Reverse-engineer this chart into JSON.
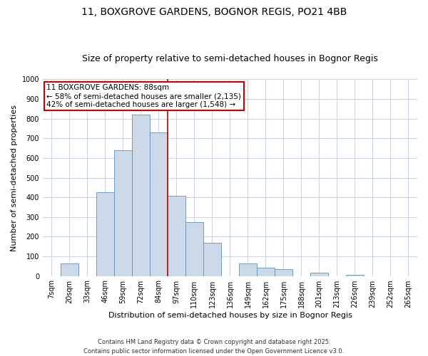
{
  "title": "11, BOXGROVE GARDENS, BOGNOR REGIS, PO21 4BB",
  "subtitle": "Size of property relative to semi-detached houses in Bognor Regis",
  "xlabel": "Distribution of semi-detached houses by size in Bognor Regis",
  "ylabel": "Number of semi-detached properties",
  "bin_labels": [
    "7sqm",
    "20sqm",
    "33sqm",
    "46sqm",
    "59sqm",
    "72sqm",
    "84sqm",
    "97sqm",
    "110sqm",
    "123sqm",
    "136sqm",
    "149sqm",
    "162sqm",
    "175sqm",
    "188sqm",
    "201sqm",
    "213sqm",
    "226sqm",
    "239sqm",
    "252sqm",
    "265sqm"
  ],
  "bar_heights": [
    0,
    65,
    0,
    425,
    638,
    820,
    730,
    408,
    272,
    170,
    0,
    65,
    42,
    33,
    0,
    15,
    0,
    5,
    0,
    0,
    0
  ],
  "bar_color": "#ccd9e8",
  "bar_edge_color": "#6090b8",
  "vline_x_index": 6.5,
  "vline_color": "#cc0000",
  "ylim": [
    0,
    1000
  ],
  "yticks": [
    0,
    100,
    200,
    300,
    400,
    500,
    600,
    700,
    800,
    900,
    1000
  ],
  "annotation_title": "11 BOXGROVE GARDENS: 88sqm",
  "annotation_line1": "← 58% of semi-detached houses are smaller (2,135)",
  "annotation_line2": "42% of semi-detached houses are larger (1,548) →",
  "annotation_box_color": "#ffffff",
  "annotation_box_edge": "#cc0000",
  "footer_line1": "Contains HM Land Registry data © Crown copyright and database right 2025.",
  "footer_line2": "Contains public sector information licensed under the Open Government Licence v3.0.",
  "bg_color": "#ffffff",
  "grid_color": "#c8d4e4",
  "title_fontsize": 10,
  "subtitle_fontsize": 9,
  "axis_label_fontsize": 8,
  "tick_fontsize": 7,
  "annotation_fontsize": 7.5,
  "footer_fontsize": 6
}
